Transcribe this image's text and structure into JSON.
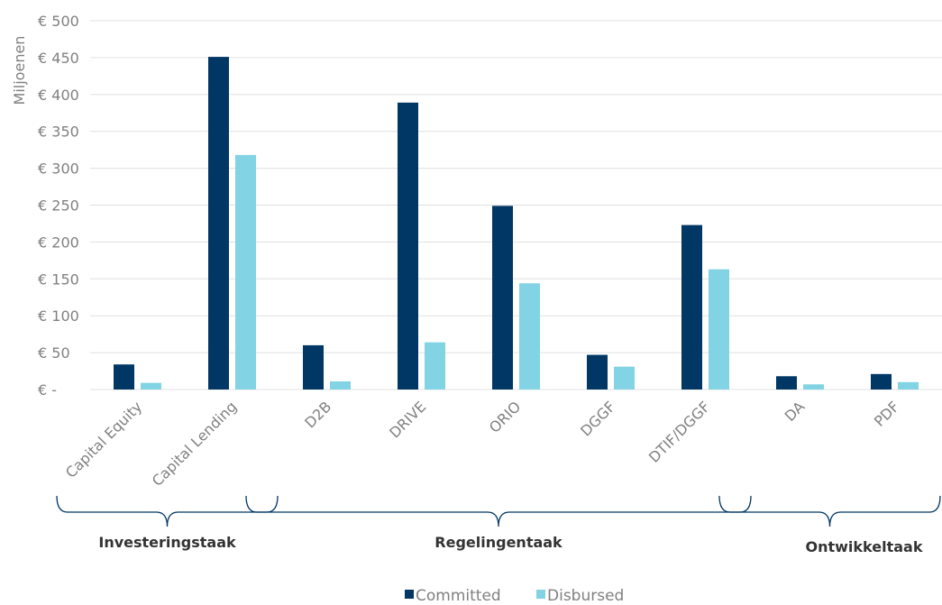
{
  "chart_data": {
    "type": "bar",
    "ylabel": "Miljoenen",
    "ylim": [
      0,
      500
    ],
    "y_ticks": [
      {
        "value": 0,
        "label": "€ -"
      },
      {
        "value": 50,
        "label": "€ 50"
      },
      {
        "value": 100,
        "label": "€ 100"
      },
      {
        "value": 150,
        "label": "€ 150"
      },
      {
        "value": 200,
        "label": "€ 200"
      },
      {
        "value": 250,
        "label": "€ 250"
      },
      {
        "value": 300,
        "label": "€ 300"
      },
      {
        "value": 350,
        "label": "€ 350"
      },
      {
        "value": 400,
        "label": "€ 400"
      },
      {
        "value": 450,
        "label": "€ 450"
      },
      {
        "value": 500,
        "label": "€ 500"
      }
    ],
    "categories": [
      "Capital Equity",
      "Capital Lending",
      "D2B",
      "DRIVE",
      "ORIO",
      "DGGF",
      "DTIF/DGGF",
      "DA",
      "PDF"
    ],
    "series": [
      {
        "name": "Committed",
        "color": "#003764",
        "values": [
          34,
          451,
          60,
          389,
          249,
          47,
          223,
          18,
          21
        ]
      },
      {
        "name": "Disbursed",
        "color": "#82d3e3",
        "values": [
          9,
          318,
          11,
          64,
          144,
          31,
          163,
          7,
          10
        ]
      }
    ],
    "groups": [
      {
        "label": "Investeringstaak",
        "categories": [
          "Capital Equity",
          "Capital Lending"
        ]
      },
      {
        "label": "Regelingentaak",
        "categories": [
          "D2B",
          "DRIVE",
          "ORIO",
          "DGGF",
          "DTIF/DGGF"
        ]
      },
      {
        "label": "Ontwikkeltaak",
        "categories": [
          "DA",
          "PDF"
        ]
      }
    ],
    "grid": true,
    "legend_position": "bottom-center",
    "gridline_color": "#e0e0e0",
    "bracket_color": "#003764"
  }
}
